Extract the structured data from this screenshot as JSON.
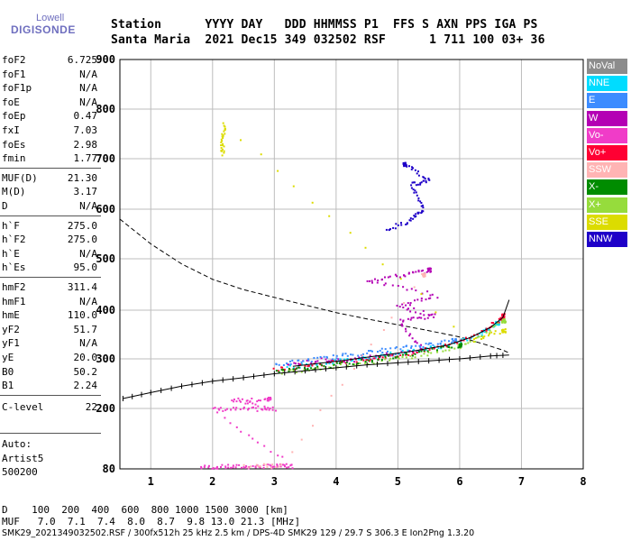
{
  "logo": {
    "line1": "Lowell",
    "line2": "DIGISONDE"
  },
  "header": {
    "line1": "Station      YYYY DAY   DDD HHMMSS P1  FFS S AXN PPS IGA PS",
    "line2": "Santa Maria  2021 Dec15 349 032502 RSF      1 711 100 03+ 36"
  },
  "params": [
    {
      "name": "foF2",
      "value": "6.725"
    },
    {
      "name": "foF1",
      "value": "N/A"
    },
    {
      "name": "foF1p",
      "value": "N/A"
    },
    {
      "name": "foE",
      "value": "N/A"
    },
    {
      "name": "foEp",
      "value": "0.47"
    },
    {
      "name": "fxI",
      "value": "7.03"
    },
    {
      "name": "foEs",
      "value": "2.98"
    },
    {
      "name": "fmin",
      "value": "1.77"
    },
    {
      "name": "MUF(D)",
      "value": "21.30"
    },
    {
      "name": "M(D)",
      "value": "3.17"
    },
    {
      "name": "D",
      "value": "N/A"
    },
    {
      "name": "h`F",
      "value": "275.0"
    },
    {
      "name": "h`F2",
      "value": "275.0"
    },
    {
      "name": "h`E",
      "value": "N/A"
    },
    {
      "name": "h`Es",
      "value": "95.0"
    },
    {
      "name": "hmF2",
      "value": "311.4"
    },
    {
      "name": "hmF1",
      "value": "N/A"
    },
    {
      "name": "hmE",
      "value": "110.0"
    },
    {
      "name": "yF2",
      "value": "51.7"
    },
    {
      "name": "yF1",
      "value": "N/A"
    },
    {
      "name": "yE",
      "value": "20.0"
    },
    {
      "name": "B0",
      "value": "50.2"
    },
    {
      "name": "B1",
      "value": "2.24"
    },
    {
      "name": "C-level",
      "value": "22"
    }
  ],
  "autoscaling": {
    "line1": "Auto:",
    "line2": "Artist5",
    "line3": "500200"
  },
  "legend": [
    {
      "label": "NoVal",
      "color": "#8c8c8c"
    },
    {
      "label": "NNE",
      "color": "#00dcff"
    },
    {
      "label": "E",
      "color": "#3c8cff"
    },
    {
      "label": "W",
      "color": "#b400b4"
    },
    {
      "label": "Vo-",
      "color": "#f03cc8"
    },
    {
      "label": "Vo+",
      "color": "#ff0033"
    },
    {
      "label": "SSW",
      "color": "#ffb4b4"
    },
    {
      "label": "X-",
      "color": "#008c00"
    },
    {
      "label": "X+",
      "color": "#96dc3c"
    },
    {
      "label": "SSE",
      "color": "#dcdc00"
    },
    {
      "label": "NNW",
      "color": "#1e00c8"
    }
  ],
  "muf_table": {
    "d_row": "D    100  200  400  600  800 1000 1500 3000 [km]",
    "muf_row": "MUF   7.0  7.1  7.4  8.0  8.7  9.8 13.0 21.3 [MHz]"
  },
  "footer": "SMK29_2021349032502.RSF / 300fx512h 25 kHz 2.5 km / DPS-4D SMK29 129 / 29.7 S 306.3 E Ion2Png 1.3.20",
  "chart_data": {
    "type": "scatter",
    "x_ticks": [
      1,
      2,
      3,
      4,
      5,
      6,
      7,
      8
    ],
    "y_ticks": [
      80,
      200,
      300,
      400,
      500,
      600,
      700,
      800,
      900
    ],
    "xlim": [
      0.5,
      8
    ],
    "ylim": [
      80,
      900
    ],
    "y_scale": "virtual height (compressed)",
    "grid": true,
    "legend_position": "right",
    "series": [
      {
        "legend": "Vo-",
        "points": [
          [
            1.8,
            85
          ],
          [
            2.2,
            86
          ],
          [
            2.6,
            86
          ],
          [
            3.0,
            87
          ],
          [
            3.3,
            87
          ],
          [
            2.0,
            200
          ],
          [
            2.5,
            200
          ],
          [
            3.0,
            200
          ],
          [
            2.3,
            220
          ],
          [
            2.9,
            220
          ]
        ]
      },
      {
        "legend": "W",
        "points": [
          [
            3.2,
            290
          ],
          [
            3.8,
            300
          ],
          [
            4.3,
            300
          ],
          [
            4.8,
            310
          ],
          [
            5.4,
            320
          ],
          [
            5.0,
            380
          ],
          [
            5.6,
            390
          ],
          [
            5.0,
            410
          ],
          [
            5.6,
            430
          ],
          [
            4.5,
            460
          ],
          [
            5.1,
            470
          ],
          [
            5.5,
            480
          ]
        ]
      },
      {
        "legend": "NNW",
        "points": [
          [
            4.8,
            560
          ],
          [
            5.2,
            580
          ],
          [
            5.4,
            600
          ],
          [
            5.2,
            650
          ],
          [
            5.5,
            660
          ],
          [
            5.1,
            690
          ]
        ]
      },
      {
        "legend": "E",
        "points": [
          [
            3.0,
            290
          ],
          [
            3.6,
            300
          ],
          [
            4.2,
            310
          ],
          [
            4.8,
            320
          ],
          [
            5.4,
            330
          ],
          [
            5.9,
            340
          ]
        ]
      },
      {
        "legend": "NNE",
        "points": [
          [
            3.2,
            285
          ],
          [
            3.9,
            295
          ],
          [
            4.5,
            305
          ],
          [
            5.2,
            318
          ],
          [
            5.8,
            330
          ],
          [
            6.3,
            350
          ],
          [
            6.6,
            375
          ]
        ]
      },
      {
        "legend": "Vo+",
        "points": [
          [
            3.0,
            280
          ],
          [
            3.6,
            290
          ],
          [
            4.4,
            300
          ],
          [
            5.1,
            310
          ],
          [
            5.8,
            330
          ],
          [
            6.4,
            360
          ],
          [
            6.7,
            390
          ]
        ]
      },
      {
        "legend": "X+",
        "points": [
          [
            3.1,
            275
          ],
          [
            3.8,
            285
          ],
          [
            4.6,
            295
          ],
          [
            5.4,
            310
          ],
          [
            6.1,
            330
          ],
          [
            6.7,
            380
          ]
        ]
      },
      {
        "legend": "X-",
        "points": [
          [
            3.0,
            275
          ],
          [
            3.7,
            285
          ],
          [
            4.5,
            298
          ],
          [
            5.2,
            312
          ],
          [
            6.0,
            330
          ]
        ]
      },
      {
        "legend": "SSE",
        "points": [
          [
            2.15,
            710
          ],
          [
            2.15,
            740
          ],
          [
            2.18,
            770
          ],
          [
            6.2,
            340
          ],
          [
            6.7,
            360
          ]
        ]
      },
      {
        "legend": "SSW",
        "points": [
          [
            2.5,
            88
          ],
          [
            3.1,
            88
          ],
          [
            5.4,
            470
          ]
        ]
      }
    ],
    "profile_dashed": [
      [
        0.5,
        580
      ],
      [
        1.0,
        530
      ],
      [
        1.5,
        490
      ],
      [
        2.0,
        460
      ],
      [
        2.5,
        440
      ],
      [
        3.0,
        425
      ],
      [
        3.5,
        410
      ],
      [
        4.0,
        395
      ],
      [
        4.5,
        382
      ],
      [
        5.0,
        370
      ],
      [
        5.5,
        358
      ],
      [
        6.0,
        345
      ],
      [
        6.4,
        330
      ],
      [
        6.7,
        318
      ],
      [
        6.8,
        312
      ]
    ],
    "trace_solid": [
      [
        3.3,
        285
      ],
      [
        4.0,
        295
      ],
      [
        4.6,
        305
      ],
      [
        5.2,
        315
      ],
      [
        5.8,
        328
      ],
      [
        6.2,
        345
      ],
      [
        6.5,
        365
      ],
      [
        6.7,
        385
      ],
      [
        6.8,
        420
      ]
    ],
    "trace_ticked": [
      [
        0.55,
        220
      ],
      [
        1.0,
        232
      ],
      [
        1.5,
        245
      ],
      [
        2.0,
        255
      ],
      [
        2.5,
        262
      ],
      [
        3.0,
        270
      ],
      [
        3.5,
        276
      ],
      [
        4.0,
        282
      ],
      [
        4.5,
        288
      ],
      [
        5.0,
        292
      ],
      [
        5.5,
        296
      ],
      [
        6.0,
        300
      ],
      [
        6.5,
        306
      ],
      [
        6.8,
        308
      ]
    ]
  }
}
